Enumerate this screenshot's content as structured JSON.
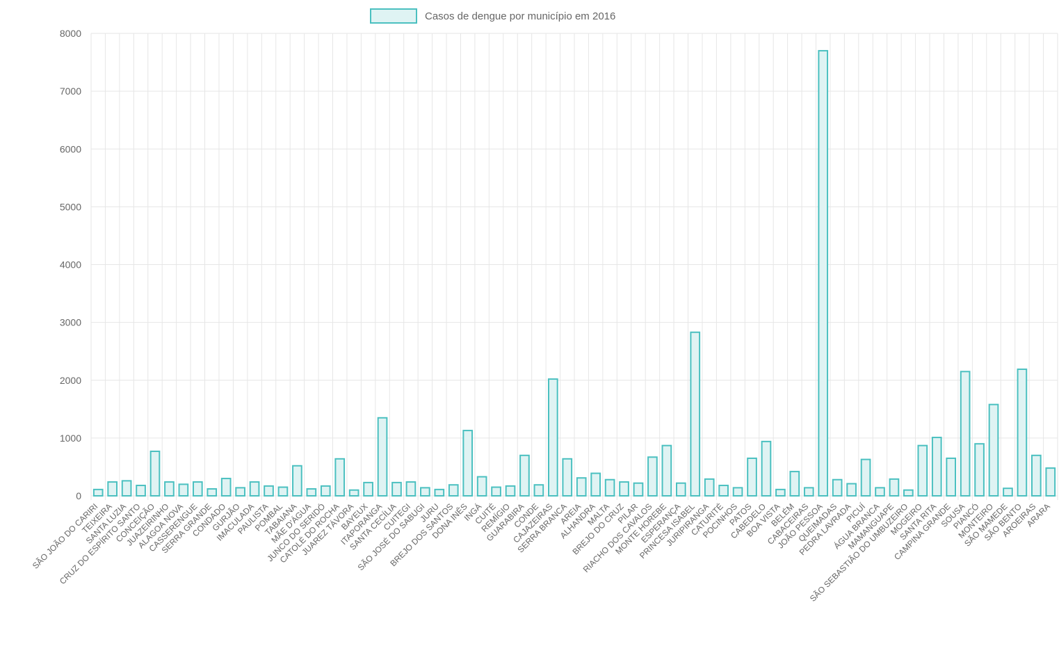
{
  "chart_data": {
    "type": "bar",
    "legend": {
      "label": "Casos de dengue por município em 2016",
      "position": "top-center"
    },
    "colors": {
      "bar_fill": "#dff3f3",
      "bar_stroke": "#4bc0c0",
      "grid": "#e6e6e6",
      "text": "#666666"
    },
    "grid": true,
    "ylim": [
      0,
      8000
    ],
    "yticks": [
      0,
      1000,
      2000,
      3000,
      4000,
      5000,
      6000,
      7000,
      8000
    ],
    "categories": [
      "SÃO JOÃO DO CARIRI",
      "TEIXEIRA",
      "SANTA LUZIA",
      "CRUZ DO ESPÍRITO SANTO",
      "CONCEIÇÃO",
      "JUAZEIRINHO",
      "ALAGOA NOVA",
      "CASSERENGUE",
      "SERRA GRANDE",
      "CONDADO",
      "GURJÃO",
      "IMACULADA",
      "PAULISTA",
      "POMBAL",
      "TABAIANA",
      "MÃE D'ÁGUA",
      "JUNCO DO SERIDÓ",
      "CATOLÉ DO ROCHA",
      "JUAREZ TÁVORA",
      "BAYEUX",
      "ITAPORANGA",
      "SANTA CECÍLIA",
      "CUITEGI",
      "SÃO JOSÉ DO SABUGI",
      "JURU",
      "BREJO DOS SANTOS",
      "DONA INÊS",
      "INGÁ",
      "CUITÉ",
      "REMÍGIO",
      "GUARABIRA",
      "CONDE",
      "CAJAZEIRAS",
      "SERRA BRANCA",
      "AREIA",
      "ALHANDRA",
      "MALTA",
      "BREJO DO CRUZ",
      "PILAR",
      "RIACHO DOS CAVALOS",
      "MONTE HOREBE",
      "ESPERANÇA",
      "PRINCESA ISABEL",
      "JURIPIRANGA",
      "CATURITÉ",
      "POCINHOS",
      "PATOS",
      "CABEDELO",
      "BOA VISTA",
      "BELÉM",
      "CABACEIRAS",
      "JOÃO PESSOA",
      "QUEIMADAS",
      "PEDRA LAVRADA",
      "PICUÍ",
      "ÁGUA BRANCA",
      "MAMANGUAPE",
      "SÃO SEBASTIÃO DO UMBUZEIRO",
      "MOGEIRO",
      "SANTA RITA",
      "CAMPINA GRANDE",
      "SOUSA",
      "PIANCÓ",
      "MONTEIRO",
      "SÃO MAMEDE",
      "SÃO BENTO",
      "AROEIRAS",
      "ARARA"
    ],
    "values": [
      110,
      240,
      260,
      180,
      770,
      240,
      200,
      240,
      120,
      300,
      140,
      240,
      170,
      150,
      520,
      120,
      170,
      640,
      100,
      230,
      1350,
      230,
      240,
      140,
      110,
      190,
      1130,
      330,
      150,
      170,
      700,
      190,
      2020,
      640,
      310,
      390,
      280,
      240,
      220,
      670,
      870,
      220,
      2830,
      290,
      180,
      140,
      650,
      940,
      110,
      420,
      140,
      7700,
      280,
      210,
      630,
      140,
      290,
      100,
      870,
      1010,
      650,
      2150,
      900,
      1580,
      130,
      2190,
      700,
      480
    ]
  }
}
